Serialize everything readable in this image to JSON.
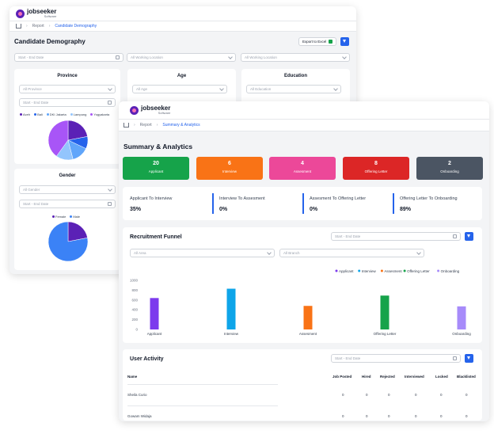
{
  "back": {
    "logo_name": "jobseeker",
    "logo_sub": "Software",
    "breadcrumb": [
      "Report",
      "Candidate Demography"
    ],
    "title": "Candidate Demography",
    "export_label": "Export to Excel",
    "date_placeholder": "Start - End Date",
    "location_1": "All Working Location",
    "location_2": "All Working Location",
    "province": {
      "title": "Province",
      "select": "All Province",
      "date": "Start - End Date",
      "legend": [
        "Aceh",
        "Bali",
        "DKI Jakarta",
        "Lampung",
        "Yogyakarta"
      ]
    },
    "age": {
      "title": "Age",
      "select": "All Age"
    },
    "education": {
      "title": "Education",
      "select": "All Education"
    },
    "gender": {
      "title": "Gender",
      "select": "All Gender",
      "date": "Start - End Date",
      "legend": [
        "Female",
        "Male"
      ]
    }
  },
  "front": {
    "logo_name": "jobseeker",
    "logo_sub": "Software",
    "breadcrumb": [
      "Report",
      "Summary & Analytics"
    ],
    "title": "Summary & Analytics",
    "stats": [
      {
        "value": "20",
        "label": "Applicant",
        "color": "#16a34a"
      },
      {
        "value": "6",
        "label": "Interview",
        "color": "#f97316"
      },
      {
        "value": "4",
        "label": "Assesment",
        "color": "#ec4899"
      },
      {
        "value": "8",
        "label": "Offering Letter",
        "color": "#dc2626"
      },
      {
        "value": "2",
        "label": "Onboarding",
        "color": "#4b5563"
      }
    ],
    "conversions": [
      {
        "label": "Applicant To Interview",
        "value": "35%"
      },
      {
        "label": "Interview To Assesment",
        "value": "0%"
      },
      {
        "label": "Assesment To Offering Letter",
        "value": "0%"
      },
      {
        "label": "Offering Letter To Onboarding",
        "value": "89%"
      }
    ],
    "funnel": {
      "title": "Recruitment Funnel",
      "date": "Start - End Date",
      "area": "All Area",
      "branch": "All Branch"
    },
    "activity": {
      "title": "User Activity",
      "date": "Start - End Date",
      "columns": [
        "Name",
        "Job Posted",
        "Hired",
        "Rejected",
        "Interviewed",
        "Locked",
        "Blacklisted"
      ],
      "rows": [
        {
          "name": "Sheila Curio",
          "values": [
            "0",
            "0",
            "0",
            "0",
            "0",
            "0"
          ]
        },
        {
          "name": "Gowam Widaja",
          "values": [
            "0",
            "0",
            "0",
            "0",
            "0",
            "0"
          ]
        }
      ]
    }
  },
  "chart_data": [
    {
      "type": "pie",
      "title": "Province",
      "labels": [
        "Aceh",
        "Bali",
        "DKI Jakarta",
        "Lampung",
        "Yogyakarta"
      ],
      "values": [
        22,
        10,
        14,
        14,
        40
      ],
      "colors": [
        "#5b21b6",
        "#2563eb",
        "#60a5fa",
        "#93c5fd",
        "#a855f7"
      ]
    },
    {
      "type": "pie",
      "title": "Gender",
      "labels": [
        "Female",
        "Male"
      ],
      "values": [
        22,
        78
      ],
      "colors": [
        "#5b21b6",
        "#3b82f6"
      ]
    },
    {
      "type": "bar",
      "categories": [
        "Applicant",
        "Interview",
        "Assesment",
        "Offering Letter",
        "Onboarding"
      ],
      "values": [
        640,
        830,
        480,
        690,
        470
      ],
      "colors": [
        "#7c3aed",
        "#0ea5e9",
        "#f97316",
        "#16a34a",
        "#a78bfa"
      ],
      "legend": [
        "Applicant",
        "Interview",
        "Assesment",
        "Offering Letter",
        "Onboarding"
      ],
      "legend_position": "top-right",
      "yticks": [
        "1000",
        "800",
        "600",
        "400",
        "200",
        "0"
      ],
      "ylim": [
        0,
        1000
      ]
    }
  ]
}
